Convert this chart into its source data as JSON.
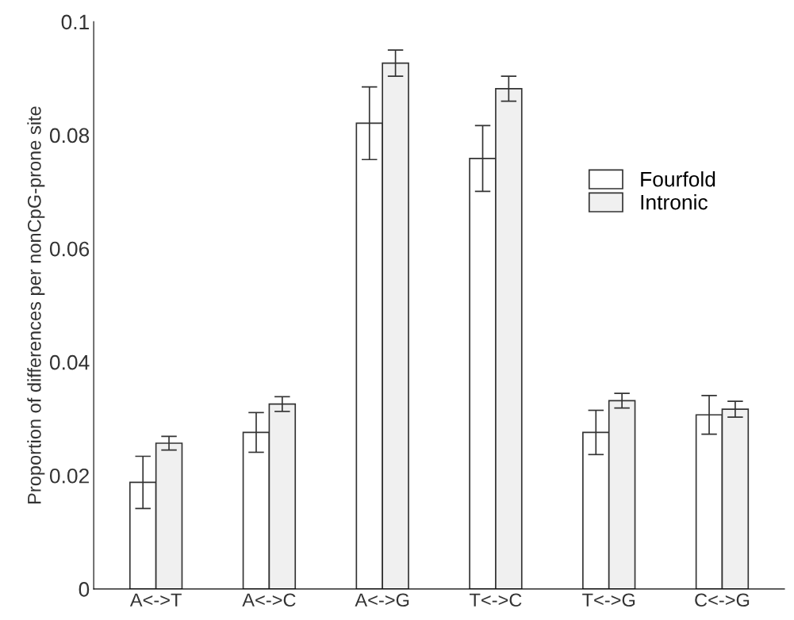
{
  "chart_data": {
    "type": "bar",
    "ylabel": "Proportion of differences per nonCpG-prone site",
    "categories": [
      "A<->T",
      "A<->C",
      "A<->G",
      "T<->C",
      "T<->G",
      "C<->G"
    ],
    "series": [
      {
        "name": "Fourfold",
        "color": "#ffffff",
        "values": [
          0.0188,
          0.0276,
          0.0821,
          0.0759,
          0.0276,
          0.0307
        ],
        "errors": [
          0.0046,
          0.0035,
          0.0064,
          0.0058,
          0.0039,
          0.0034
        ]
      },
      {
        "name": "Intronic",
        "color": "#f0f0f0",
        "values": [
          0.0257,
          0.0326,
          0.0927,
          0.0882,
          0.0332,
          0.0317
        ],
        "errors": [
          0.0012,
          0.0013,
          0.0023,
          0.0022,
          0.0013,
          0.0014
        ]
      }
    ],
    "ylim": [
      0,
      0.1
    ],
    "yticks": [
      0,
      0.02,
      0.04,
      0.06,
      0.08,
      0.1
    ],
    "grid": false,
    "legend": "right"
  }
}
